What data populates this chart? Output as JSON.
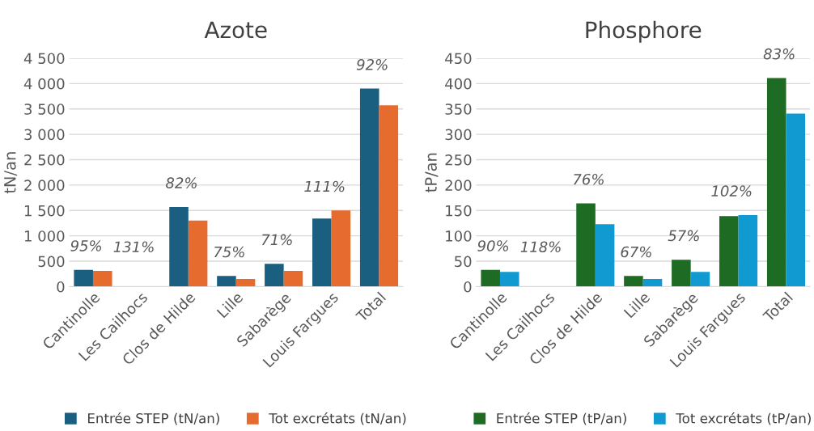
{
  "chart_data": [
    {
      "type": "bar",
      "title": "Azote",
      "ylabel": "tN/an",
      "categories": [
        "Cantinolle",
        "Les Cailhocs",
        "Clos de Hilde",
        "Lille",
        "Sabarège",
        "Louis Fargues",
        "Total"
      ],
      "series": [
        {
          "name": "Entrée STEP (tN/an)",
          "color": "#1a5e80",
          "values": [
            330,
            0,
            1570,
            210,
            450,
            1340,
            3900
          ]
        },
        {
          "name": "Tot excrétats (tN/an)",
          "color": "#e56b2f",
          "values": [
            310,
            0,
            1300,
            150,
            310,
            1500,
            3570
          ]
        }
      ],
      "ylim": [
        0,
        4500
      ],
      "yticks": [
        {
          "value": 0,
          "label": "0"
        },
        {
          "value": 500,
          "label": "500"
        },
        {
          "value": 1000,
          "label": "1 000"
        },
        {
          "value": 1500,
          "label": "1 500"
        },
        {
          "value": 2000,
          "label": "2 000"
        },
        {
          "value": 2500,
          "label": "2 500"
        },
        {
          "value": 3000,
          "label": "3 000"
        },
        {
          "value": 3500,
          "label": "3 500"
        },
        {
          "value": 4000,
          "label": "4 000"
        },
        {
          "value": 4500,
          "label": "4 500"
        }
      ],
      "grid": "y",
      "legend": "bottom",
      "annotations": [
        "95%",
        "131%",
        "82%",
        "75%",
        "71%",
        "111%",
        "92%"
      ]
    },
    {
      "type": "bar",
      "title": "Phosphore",
      "ylabel": "tP/an",
      "categories": [
        "Cantinolle",
        "Les Cailhocs",
        "Clos de Hilde",
        "Lille",
        "Sabarège",
        "Louis Fargues",
        "Total"
      ],
      "series": [
        {
          "name": "Entrée STEP (tP/an)",
          "color": "#1e6b23",
          "values": [
            33,
            0,
            164,
            21,
            53,
            139,
            411
          ]
        },
        {
          "name": "Tot excrétats (tP/an)",
          "color": "#1199d1",
          "values": [
            29,
            0,
            123,
            15,
            29,
            141,
            341
          ]
        }
      ],
      "ylim": [
        0,
        450
      ],
      "yticks": [
        0,
        50,
        100,
        150,
        200,
        250,
        300,
        350,
        400,
        450
      ],
      "grid": "y",
      "legend": "bottom",
      "annotations": [
        "90%",
        "118%",
        "76%",
        "67%",
        "57%",
        "102%",
        "83%"
      ]
    }
  ]
}
